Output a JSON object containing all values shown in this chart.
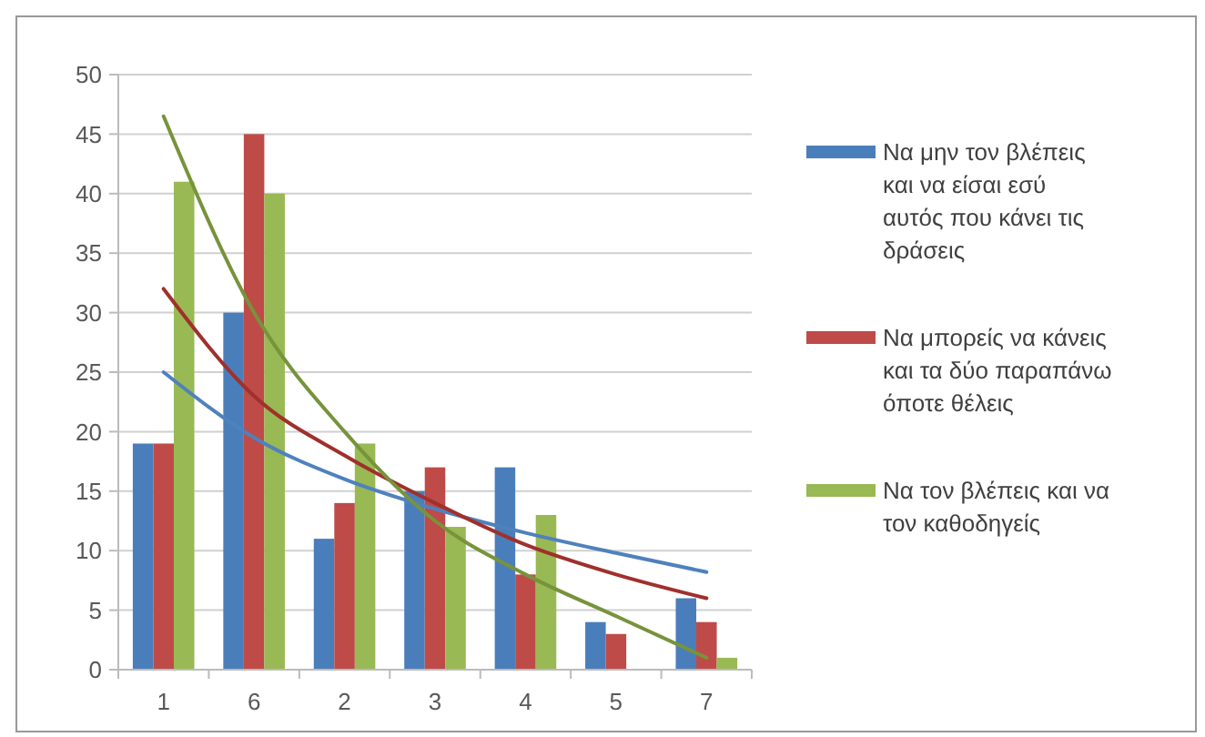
{
  "chart_data": {
    "type": "bar",
    "categories": [
      "1",
      "6",
      "2",
      "3",
      "4",
      "5",
      "7"
    ],
    "ylim": [
      0,
      50
    ],
    "yticks": [
      0,
      5,
      10,
      15,
      20,
      25,
      30,
      35,
      40,
      45,
      50
    ],
    "grid": "y",
    "legend": "right",
    "series": [
      {
        "name": "Να μην τον βλέπεις και να είσαι εσύ αυτός που κάνει τις δράσεις",
        "color": "#4a7ebb",
        "values": [
          19,
          30,
          11,
          15,
          17,
          4,
          6
        ]
      },
      {
        "name": "Να μπορείς να κάνεις και τα δύο παραπάνω όποτε θέλεις",
        "color": "#be4b48",
        "values": [
          19,
          45,
          14,
          17,
          8,
          3,
          4
        ]
      },
      {
        "name": "Να τον βλέπεις και να τον καθοδηγείς",
        "color": "#98b954",
        "values": [
          41,
          40,
          19,
          12,
          13,
          0,
          1
        ]
      },
      {
        "type": "line",
        "color": "#4f81bd",
        "values": [
          25,
          19.5,
          16,
          13.5,
          11.5,
          9.8,
          8.2
        ]
      },
      {
        "type": "line",
        "color": "#a0302c",
        "values": [
          32,
          23,
          18,
          14,
          10.5,
          8,
          6
        ]
      },
      {
        "type": "line",
        "color": "#77933c",
        "values": [
          46.5,
          30,
          20,
          12.5,
          8,
          4.5,
          1
        ]
      }
    ]
  }
}
